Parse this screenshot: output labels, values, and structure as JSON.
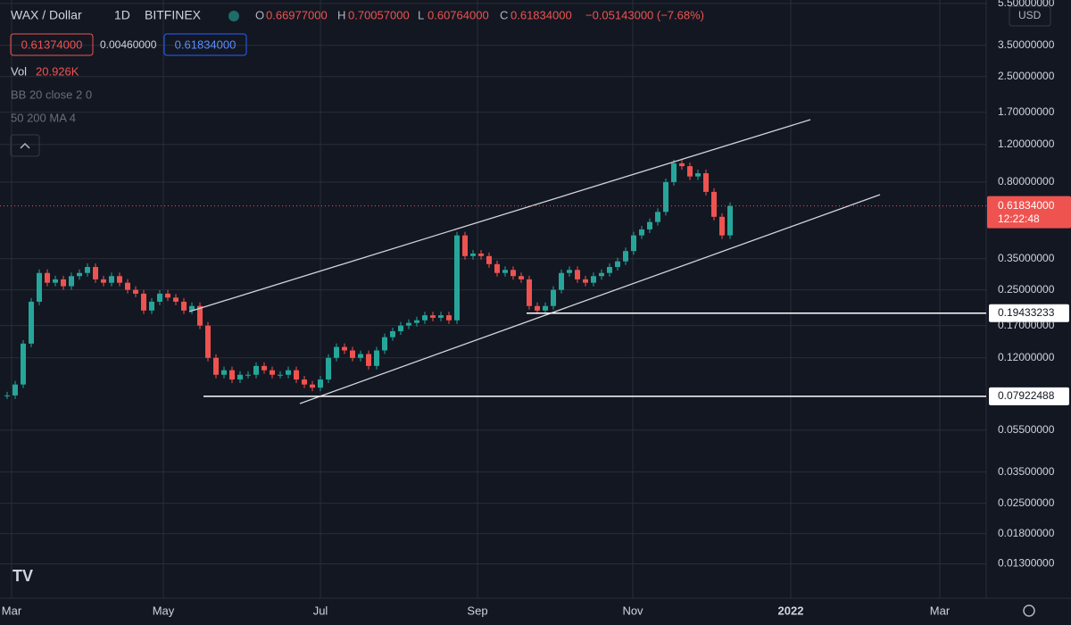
{
  "header": {
    "symbol": "WAX / Dollar",
    "interval": "1D",
    "exchange": "BITFINEX",
    "open_label": "O",
    "open": "0.66977000",
    "high_label": "H",
    "high": "0.70057000",
    "low_label": "L",
    "low": "0.60764000",
    "close_label": "C",
    "close": "0.61834000",
    "change": "−0.05143000 (−7.68%)",
    "bid": "0.61374000",
    "spread": "0.00460000",
    "ask": "0.61834000"
  },
  "indicators": {
    "vol_label": "Vol",
    "vol_value": "20.926K",
    "bb": "BB 20 close 2 0",
    "ma": "50 200 MA 4"
  },
  "price_axis": {
    "currency": "USD",
    "ylim": [
      0.00791,
      5.71
    ],
    "ticks": [
      {
        "value": 5.5,
        "label": "5.50000000"
      },
      {
        "value": 3.5,
        "label": "3.50000000"
      },
      {
        "value": 2.5,
        "label": "2.50000000"
      },
      {
        "value": 1.7,
        "label": "1.70000000"
      },
      {
        "value": 1.2,
        "label": "1.20000000"
      },
      {
        "value": 0.8,
        "label": "0.80000000"
      },
      {
        "value": 0.35,
        "label": "0.35000000"
      },
      {
        "value": 0.25,
        "label": "0.25000000"
      },
      {
        "value": 0.17,
        "label": "0.17000000"
      },
      {
        "value": 0.12,
        "label": "0.12000000"
      },
      {
        "value": 0.055,
        "label": "0.05500000"
      },
      {
        "value": 0.035,
        "label": "0.03500000"
      },
      {
        "value": 0.025,
        "label": "0.02500000"
      },
      {
        "value": 0.018,
        "label": "0.01800000"
      },
      {
        "value": 0.013,
        "label": "0.01300000"
      }
    ],
    "levels": [
      {
        "value": 0.19433233,
        "label": "0.19433233"
      },
      {
        "value": 0.07922488,
        "label": "0.07922488"
      }
    ],
    "last": {
      "value": 0.61834,
      "label": "0.61834000",
      "countdown": "12:22:48"
    }
  },
  "time_axis": [
    "Mar",
    "May",
    "Jul",
    "Sep",
    "Nov",
    "2022",
    "Mar"
  ],
  "candles": {
    "closes": [
      0.08,
      0.09,
      0.14,
      0.22,
      0.3,
      0.27,
      0.28,
      0.26,
      0.29,
      0.3,
      0.32,
      0.28,
      0.27,
      0.29,
      0.27,
      0.25,
      0.24,
      0.2,
      0.22,
      0.24,
      0.23,
      0.22,
      0.2,
      0.21,
      0.17,
      0.12,
      0.1,
      0.105,
      0.095,
      0.1,
      0.1,
      0.11,
      0.105,
      0.1,
      0.1,
      0.105,
      0.095,
      0.09,
      0.087,
      0.095,
      0.12,
      0.135,
      0.13,
      0.12,
      0.125,
      0.11,
      0.13,
      0.15,
      0.16,
      0.17,
      0.175,
      0.18,
      0.19,
      0.185,
      0.19,
      0.18,
      0.45,
      0.36,
      0.37,
      0.36,
      0.33,
      0.3,
      0.31,
      0.29,
      0.28,
      0.21,
      0.2,
      0.21,
      0.25,
      0.3,
      0.31,
      0.28,
      0.27,
      0.29,
      0.3,
      0.32,
      0.34,
      0.38,
      0.45,
      0.48,
      0.52,
      0.58,
      0.8,
      0.98,
      0.95,
      0.85,
      0.88,
      0.72,
      0.55,
      0.45,
      0.618
    ]
  }
}
